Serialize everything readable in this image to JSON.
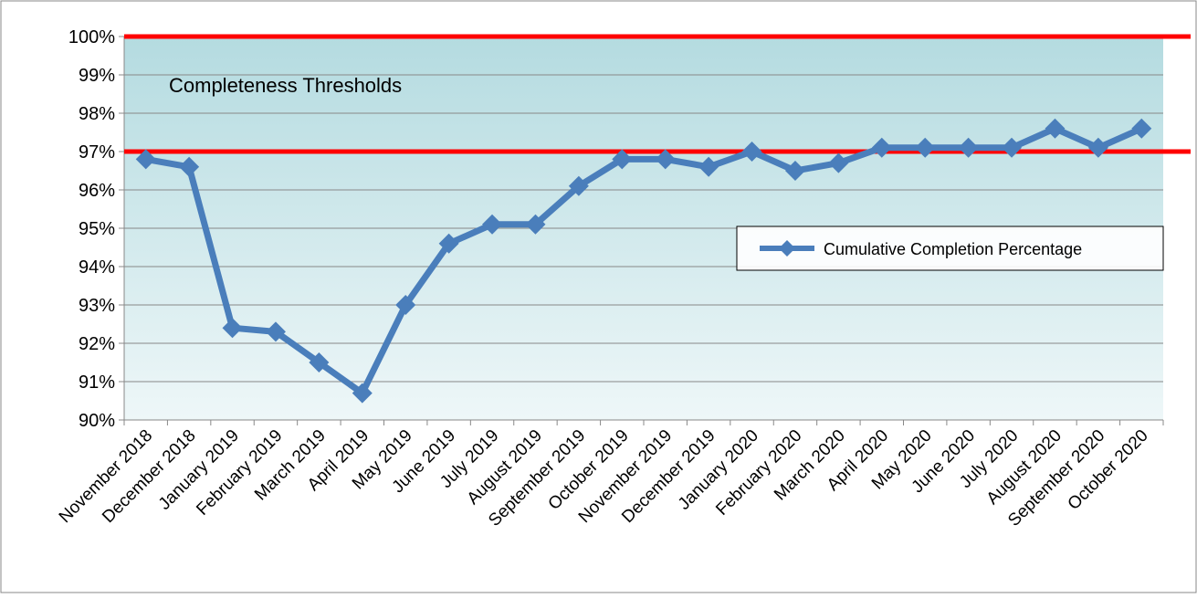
{
  "chart_data": {
    "type": "line",
    "annotation": "Completeness Thresholds",
    "categories": [
      "November 2018",
      "December 2018",
      "January 2019",
      "February 2019",
      "March 2019",
      "April 2019",
      "May 2019",
      "June 2019",
      "July 2019",
      "August 2019",
      "September 2019",
      "October 2019",
      "November 2019",
      "December 2019",
      "January 2020",
      "February 2020",
      "March 2020",
      "April 2020",
      "May 2020",
      "June 2020",
      "July 2020",
      "August 2020",
      "September 2020",
      "October 2020"
    ],
    "series": [
      {
        "name": "Cumulative Completion Percentage",
        "color": "#4a7ebb",
        "values": [
          96.8,
          96.6,
          92.4,
          92.3,
          91.5,
          90.7,
          93.0,
          94.6,
          95.1,
          95.1,
          96.1,
          96.8,
          96.8,
          96.6,
          97.0,
          96.5,
          96.7,
          97.1,
          97.1,
          97.1,
          97.1,
          97.6,
          97.1,
          97.6
        ]
      }
    ],
    "thresholds": [
      100,
      97
    ],
    "threshold_color": "#ff0000",
    "ylim": [
      90,
      100
    ],
    "yticks": [
      {
        "value": 90,
        "label": "90%"
      },
      {
        "value": 91,
        "label": "91%"
      },
      {
        "value": 92,
        "label": "92%"
      },
      {
        "value": 93,
        "label": "93%"
      },
      {
        "value": 94,
        "label": "94%"
      },
      {
        "value": 95,
        "label": "95%"
      },
      {
        "value": 96,
        "label": "96%"
      },
      {
        "value": 97,
        "label": "97%"
      },
      {
        "value": 98,
        "label": "98%"
      },
      {
        "value": 99,
        "label": "99%"
      },
      {
        "value": 100,
        "label": "100%"
      }
    ],
    "grid": true,
    "legend": "right"
  }
}
